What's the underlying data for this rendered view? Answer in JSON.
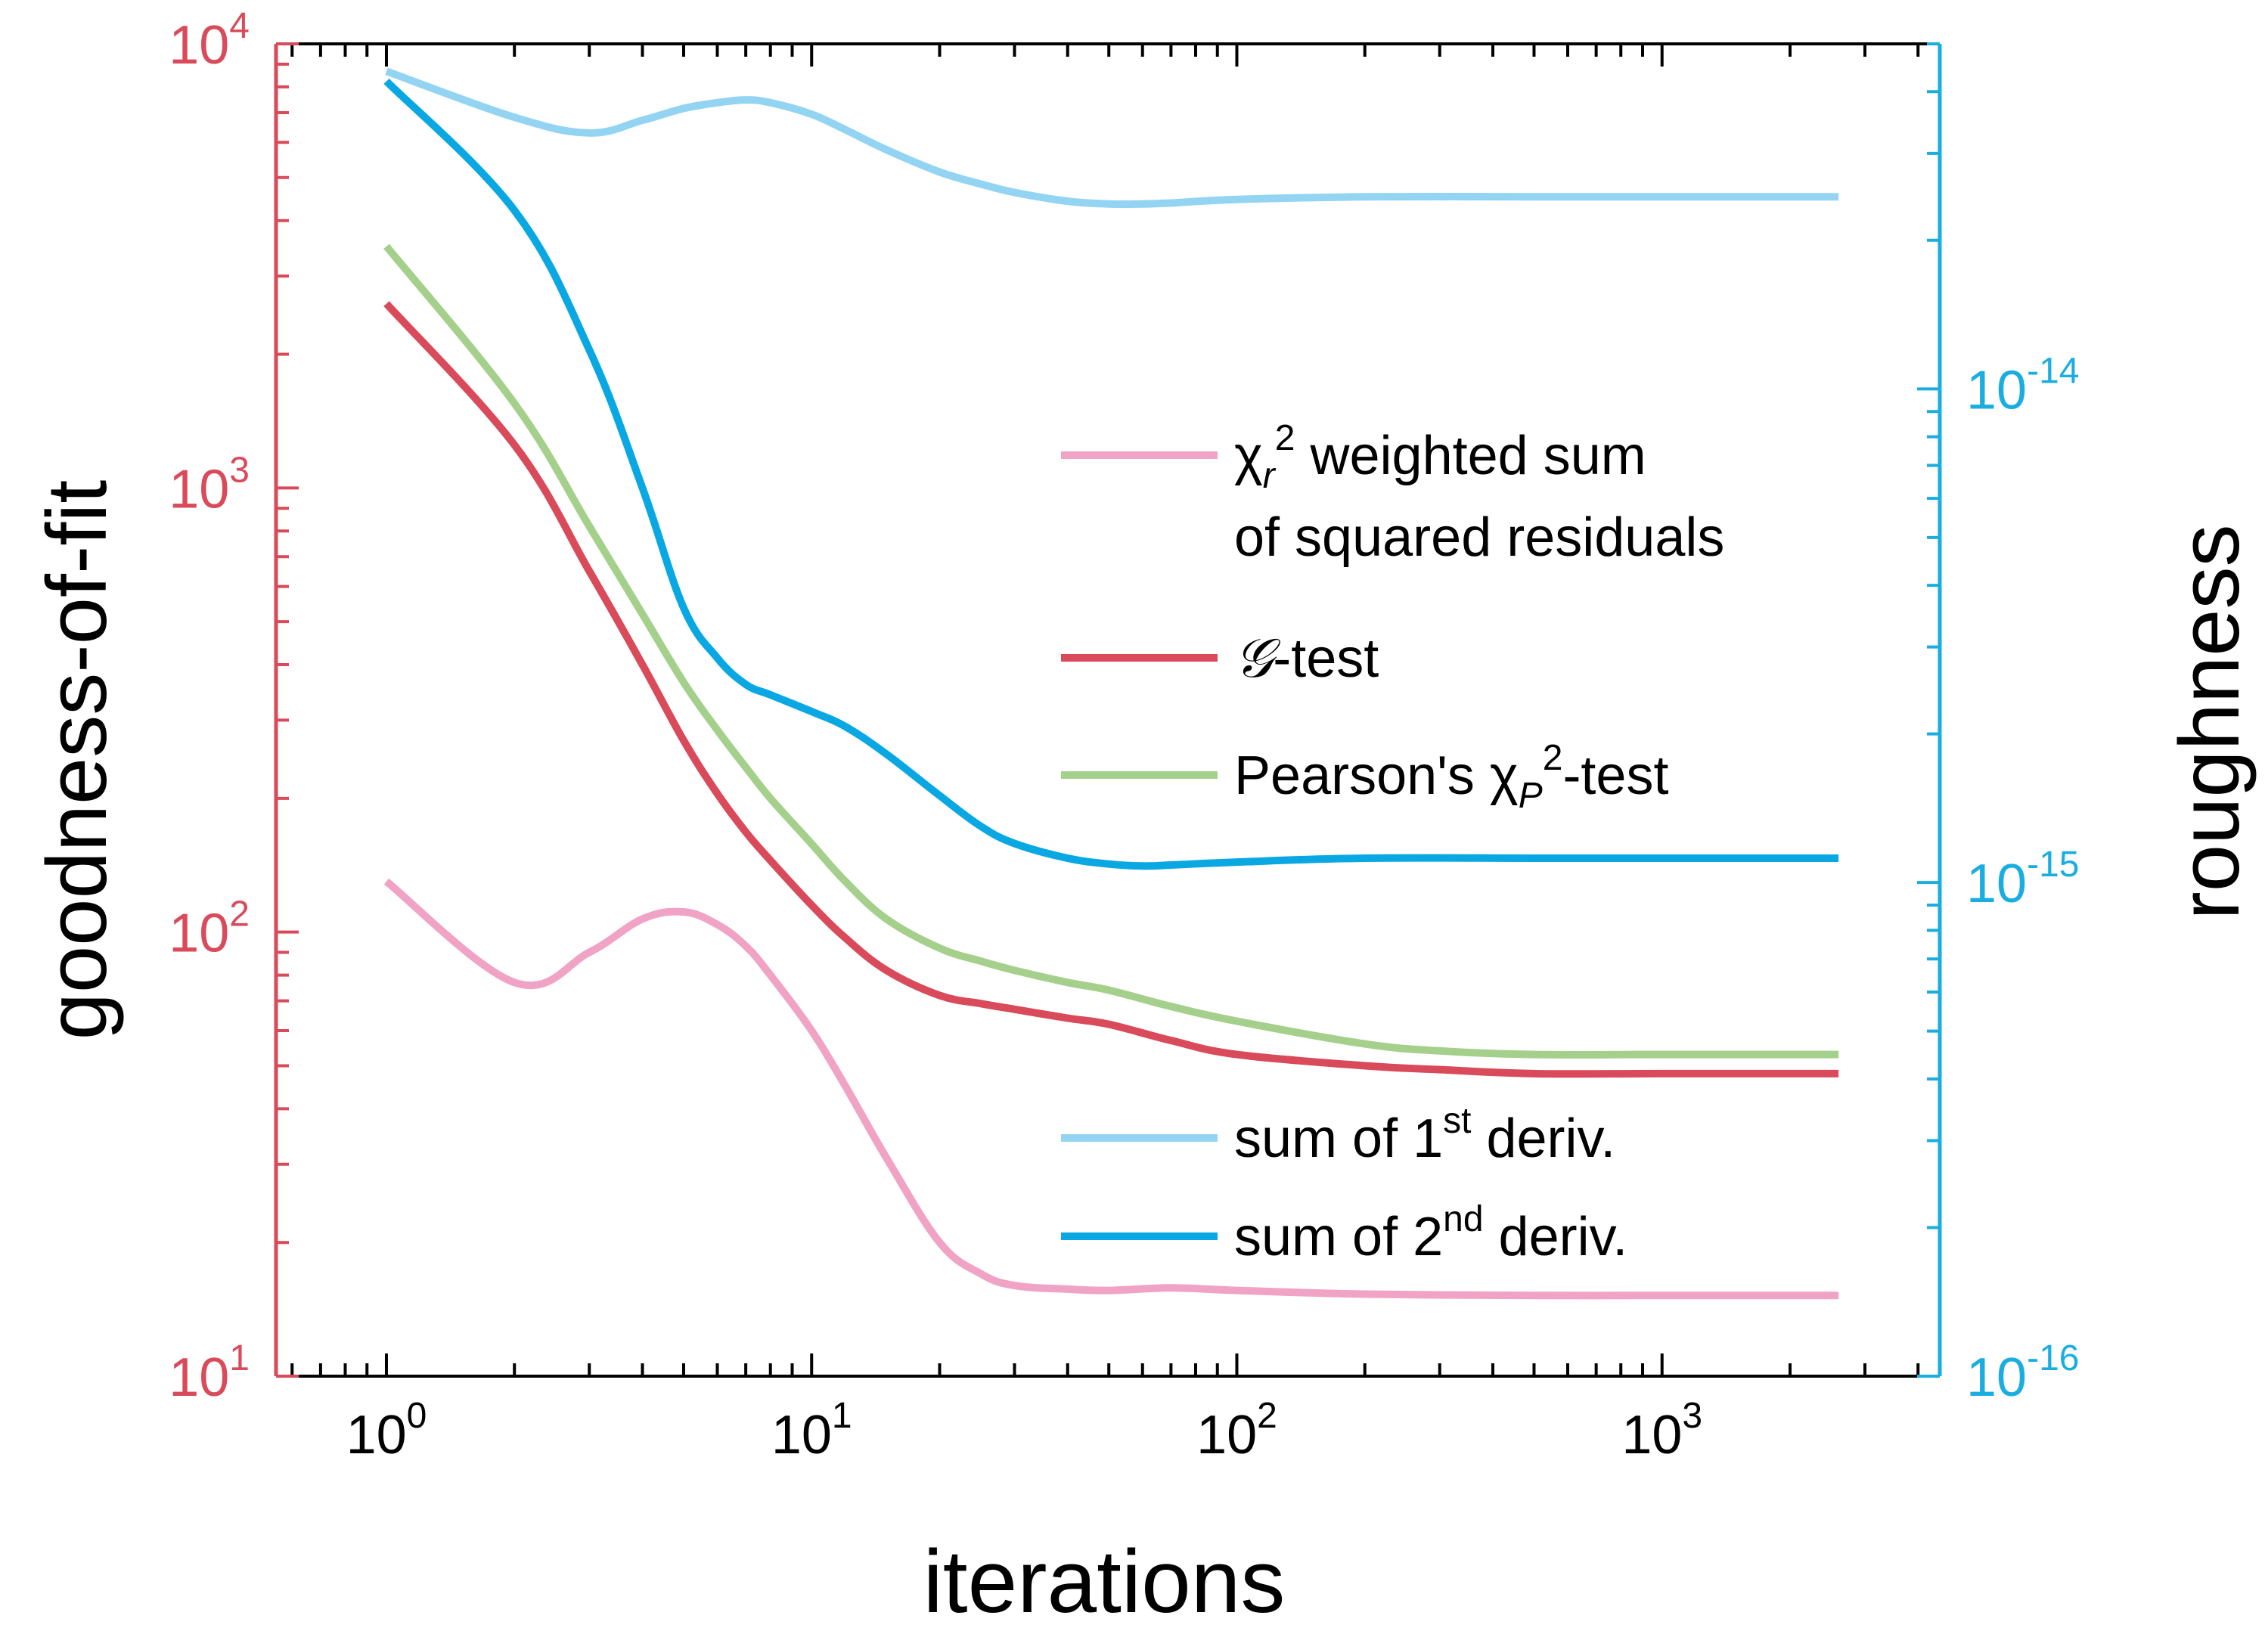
{
  "chart_data": {
    "type": "line",
    "xlabel": "iterations",
    "ylabel_left": "goodness-of-fit",
    "ylabel_right": "roughness",
    "x_scale": "log",
    "xlim": [
      0.55,
      4500
    ],
    "ylim_left": [
      10,
      10000
    ],
    "ylim_right": [
      1e-16,
      5e-14
    ],
    "y_scale_left": "log",
    "y_scale_right": "log",
    "grid": false,
    "legend_placement": "inside-right",
    "left_axis_color": "#d94a5a",
    "right_axis_color": "#1aaee0",
    "x_ticks": [
      {
        "value": 1,
        "base": "10",
        "exp": "0"
      },
      {
        "value": 10,
        "base": "10",
        "exp": "1"
      },
      {
        "value": 100,
        "base": "10",
        "exp": "2"
      },
      {
        "value": 1000,
        "base": "10",
        "exp": "3"
      }
    ],
    "y_ticks_left": [
      {
        "value": 10,
        "base": "10",
        "exp": "1"
      },
      {
        "value": 100,
        "base": "10",
        "exp": "2"
      },
      {
        "value": 1000,
        "base": "10",
        "exp": "3"
      },
      {
        "value": 10000,
        "base": "10",
        "exp": "4"
      }
    ],
    "y_ticks_right": [
      {
        "value": 1e-16,
        "base": "10",
        "exp": "-16"
      },
      {
        "value": 1e-15,
        "base": "10",
        "exp": "-15"
      },
      {
        "value": 1e-14,
        "base": "10",
        "exp": "-14"
      }
    ],
    "legend": [
      {
        "key": "chi_r",
        "color": "#f0a3c4",
        "parts": [
          {
            "t": "χ",
            "s": ""
          },
          {
            "t": "r",
            "s": "sub-i"
          },
          {
            "t": "2",
            "s": "sup"
          },
          {
            "t": " weighted sum",
            "s": ""
          }
        ],
        "line2": "of squared residuals"
      },
      {
        "key": "g_test",
        "color": "#d94a5a",
        "parts": [
          {
            "t": "𝒢",
            "s": "i"
          },
          {
            "t": "-test",
            "s": ""
          }
        ]
      },
      {
        "key": "pearson",
        "color": "#a5d08c",
        "parts": [
          {
            "t": "Pearson's χ",
            "s": ""
          },
          {
            "t": "P",
            "s": "sub-i"
          },
          {
            "t": "2",
            "s": "sup"
          },
          {
            "t": "-test",
            "s": ""
          }
        ]
      },
      {
        "key": "deriv1",
        "color": "#93d4f3",
        "parts": [
          {
            "t": "sum of 1",
            "s": ""
          },
          {
            "t": "st",
            "s": "sup"
          },
          {
            "t": " deriv.",
            "s": ""
          }
        ]
      },
      {
        "key": "deriv2",
        "color": "#0aa8e2",
        "parts": [
          {
            "t": "sum of 2",
            "s": ""
          },
          {
            "t": "nd",
            "s": "sup"
          },
          {
            "t": " deriv.",
            "s": ""
          }
        ]
      }
    ],
    "series": [
      {
        "key": "chi_r",
        "axis": "left",
        "color": "#f0a3c4",
        "x": [
          1,
          2,
          3,
          4,
          5,
          6,
          7,
          8,
          10,
          12,
          15,
          20,
          25,
          30,
          40,
          50,
          70,
          100,
          200,
          500,
          1000,
          2600
        ],
        "y": [
          130,
          77,
          90,
          107,
          111,
          104,
          93,
          80,
          60,
          45,
          31,
          20,
          17,
          16,
          15.7,
          15.6,
          15.8,
          15.6,
          15.3,
          15.2,
          15.2,
          15.2
        ]
      },
      {
        "key": "g_test",
        "axis": "left",
        "color": "#d94a5a",
        "x": [
          1,
          2,
          3,
          4,
          5,
          6,
          7,
          8,
          10,
          12,
          15,
          20,
          25,
          30,
          40,
          50,
          70,
          100,
          200,
          300,
          500,
          1000,
          2600
        ],
        "y": [
          2600,
          1250,
          650,
          400,
          270,
          205,
          168,
          145,
          115,
          97,
          82,
          72,
          69,
          67,
          64,
          62,
          57,
          53,
          50,
          49,
          48,
          48,
          48
        ]
      },
      {
        "key": "pearson",
        "axis": "left",
        "color": "#a5d08c",
        "x": [
          1,
          2,
          3,
          4,
          5,
          6,
          7,
          8,
          10,
          12,
          15,
          20,
          25,
          30,
          40,
          50,
          70,
          100,
          200,
          300,
          500,
          1000,
          2600
        ],
        "y": [
          3500,
          1550,
          820,
          520,
          365,
          285,
          235,
          200,
          158,
          130,
          107,
          92,
          86,
          82,
          77,
          74,
          68,
          63,
          56,
          54,
          53,
          53,
          53
        ]
      },
      {
        "key": "deriv1",
        "axis": "right",
        "color": "#93d4f3",
        "x": [
          1,
          2,
          3,
          4,
          5,
          6,
          7,
          8,
          10,
          12,
          15,
          20,
          25,
          30,
          40,
          50,
          60,
          70,
          100,
          200,
          500,
          1000,
          2600
        ],
        "y": [
          4.4e-14,
          3.55e-14,
          3.3e-14,
          3.5e-14,
          3.7e-14,
          3.8e-14,
          3.85e-14,
          3.8e-14,
          3.6e-14,
          3.35e-14,
          3.05e-14,
          2.75e-14,
          2.6e-14,
          2.5e-14,
          2.4e-14,
          2.37e-14,
          2.37e-14,
          2.38e-14,
          2.42e-14,
          2.45e-14,
          2.45e-14,
          2.45e-14,
          2.45e-14
        ]
      },
      {
        "key": "deriv2",
        "axis": "right",
        "color": "#0aa8e2",
        "x": [
          1,
          2,
          3,
          4,
          5,
          6,
          7,
          8,
          10,
          12,
          15,
          20,
          25,
          30,
          40,
          50,
          60,
          70,
          100,
          200,
          500,
          1000,
          2600
        ],
        "y": [
          4.2e-14,
          2.3e-14,
          1.2e-14,
          6.3e-15,
          3.6e-15,
          2.85e-15,
          2.52e-15,
          2.4e-15,
          2.22e-15,
          2.07e-15,
          1.82e-15,
          1.5e-15,
          1.3e-15,
          1.2e-15,
          1.12e-15,
          1.09e-15,
          1.08e-15,
          1.085e-15,
          1.1e-15,
          1.12e-15,
          1.12e-15,
          1.12e-15,
          1.12e-15
        ]
      }
    ]
  }
}
